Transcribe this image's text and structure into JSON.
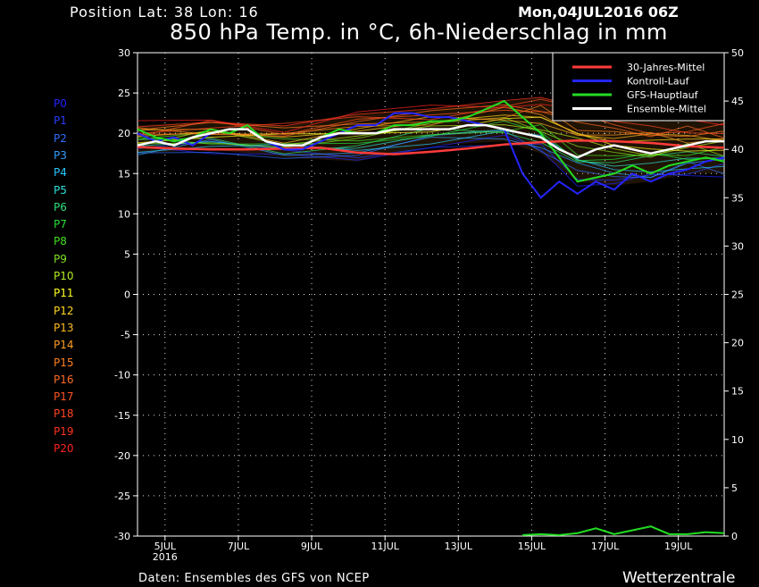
{
  "header": {
    "position": "Position  Lat: 38 Lon: 16",
    "date": "Mon,04JUL2016 06Z",
    "title": "850 hPa Temp. in °C, 6h-Niederschlag in mm"
  },
  "footer": {
    "source": "Daten: Ensembles des GFS von NCEP",
    "brand": "Wetterzentrale"
  },
  "members": [
    {
      "label": "P0",
      "color": "#2222ff"
    },
    {
      "label": "P1",
      "color": "#2a3cff"
    },
    {
      "label": "P2",
      "color": "#2f6cff"
    },
    {
      "label": "P3",
      "color": "#2f9dff"
    },
    {
      "label": "P4",
      "color": "#26c8ff"
    },
    {
      "label": "P5",
      "color": "#2ee0d8"
    },
    {
      "label": "P6",
      "color": "#2ee07a"
    },
    {
      "label": "P7",
      "color": "#22e03a"
    },
    {
      "label": "P8",
      "color": "#44e022"
    },
    {
      "label": "P9",
      "color": "#7ee022"
    },
    {
      "label": "P10",
      "color": "#b4ee22"
    },
    {
      "label": "P11",
      "color": "#ffff22"
    },
    {
      "label": "P12",
      "color": "#ffd822"
    },
    {
      "label": "P13",
      "color": "#ffba22"
    },
    {
      "label": "P14",
      "color": "#ff9c22"
    },
    {
      "label": "P15",
      "color": "#ff8022"
    },
    {
      "label": "P16",
      "color": "#ff6a22"
    },
    {
      "label": "P17",
      "color": "#ff5522"
    },
    {
      "label": "P18",
      "color": "#ff4422"
    },
    {
      "label": "P19",
      "color": "#ff3322"
    },
    {
      "label": "P20",
      "color": "#ff2222"
    }
  ],
  "chart_data": {
    "type": "line",
    "grid": true,
    "legend_position": "top-right",
    "x_unit": "days since 04JUL2016 06Z",
    "xlim": [
      0,
      16
    ],
    "x_ticks": [
      {
        "x": 0.75,
        "label": "5JUL"
      },
      {
        "x": 2.75,
        "label": "7JUL"
      },
      {
        "x": 4.75,
        "label": "9JUL"
      },
      {
        "x": 6.75,
        "label": "11JUL"
      },
      {
        "x": 8.75,
        "label": "13JUL"
      },
      {
        "x": 10.75,
        "label": "15JUL"
      },
      {
        "x": 12.75,
        "label": "17JUL"
      },
      {
        "x": 14.75,
        "label": "19JUL"
      }
    ],
    "x_year_label": "2016",
    "left_axis": {
      "label": "850 hPa Temp. in °C",
      "ylim": [
        -30,
        30
      ],
      "ticks": [
        30,
        25,
        20,
        15,
        10,
        5,
        0,
        -5,
        -10,
        -15,
        -20,
        -25,
        -30
      ]
    },
    "right_axis": {
      "label": "6h-Niederschlag in mm",
      "ylim": [
        0,
        50
      ],
      "ticks": [
        50,
        45,
        40,
        35,
        30,
        25,
        20,
        15,
        10,
        5,
        0
      ]
    },
    "series": [
      {
        "name": "30-Jahres-Mittel",
        "color": "#ff3b3b",
        "width": 2.5,
        "x": [
          0,
          1,
          2,
          3,
          4,
          5,
          6,
          7,
          8,
          9,
          10,
          11,
          12,
          13,
          14,
          15,
          16
        ],
        "y": [
          18.3,
          18.1,
          18.0,
          18.0,
          18.1,
          18.2,
          17.6,
          17.4,
          17.7,
          18.1,
          18.6,
          18.9,
          19.1,
          19.0,
          18.8,
          18.4,
          18.2
        ]
      },
      {
        "name": "Kontroll-Lauf",
        "color": "#2424ff",
        "width": 2,
        "x": [
          0,
          0.5,
          1,
          1.5,
          2,
          2.5,
          3,
          3.5,
          4,
          4.5,
          5,
          5.5,
          6,
          6.5,
          7,
          7.5,
          8,
          8.5,
          9,
          9.5,
          10,
          10.5,
          11,
          11.5,
          12,
          12.5,
          13,
          13.5,
          14,
          14.5,
          15,
          15.5,
          16
        ],
        "y": [
          20,
          19,
          19.5,
          18.5,
          20,
          20.5,
          20.5,
          19,
          18,
          18,
          19,
          20,
          21,
          21,
          22.5,
          22.5,
          22,
          22,
          21.5,
          21,
          20.5,
          15,
          12,
          14,
          12.5,
          14,
          13,
          15,
          14,
          15,
          15.5,
          16.5,
          17
        ]
      },
      {
        "name": "GFS-Hauptlauf",
        "color": "#22dd22",
        "width": 2,
        "x": [
          0,
          0.5,
          1,
          1.5,
          2,
          2.5,
          3,
          3.5,
          4,
          4.5,
          5,
          5.5,
          6,
          6.5,
          7,
          7.5,
          8,
          8.5,
          9,
          9.5,
          10,
          10.5,
          11,
          11.5,
          12,
          12.5,
          13,
          13.5,
          14,
          14.5,
          15,
          15.5,
          16
        ],
        "y": [
          20.5,
          19.5,
          19,
          19.5,
          20.5,
          20,
          21,
          19,
          18.5,
          18.5,
          19.5,
          20.5,
          20,
          20,
          21,
          21,
          21.5,
          21.5,
          22,
          23,
          24,
          22,
          20,
          17,
          14,
          14.5,
          15,
          16,
          15,
          16,
          16.5,
          17,
          16.5
        ]
      },
      {
        "name": "Ensemble-Mittel",
        "color": "#ffffff",
        "width": 2.5,
        "x": [
          0,
          0.5,
          1,
          1.5,
          2,
          2.5,
          3,
          3.5,
          4,
          4.5,
          5,
          5.5,
          6,
          6.5,
          7,
          7.5,
          8,
          8.5,
          9,
          9.5,
          10,
          10.5,
          11,
          11.5,
          12,
          12.5,
          13,
          13.5,
          14,
          14.5,
          15,
          15.5,
          16
        ],
        "y": [
          18.5,
          19,
          18.5,
          19.5,
          20,
          20.5,
          20.5,
          19,
          18.5,
          18.5,
          19.5,
          20,
          20,
          20,
          20.5,
          20.5,
          20.5,
          20.5,
          21,
          21,
          20.5,
          20,
          19.5,
          18,
          17,
          18,
          18.5,
          18,
          17.5,
          18,
          18.5,
          19,
          19
        ]
      }
    ],
    "ensemble_spread": {
      "x": [
        0,
        2,
        4,
        6,
        8,
        10,
        11,
        12,
        13,
        14,
        15,
        16
      ],
      "lower": [
        17.5,
        18,
        17,
        16.5,
        18.5,
        19,
        17.5,
        14,
        13.5,
        14,
        15,
        15
      ],
      "upper": [
        21,
        21.5,
        21,
        22.5,
        23,
        24,
        24.5,
        23.5,
        22,
        22,
        21.5,
        21.5
      ]
    },
    "precip": {
      "x": [
        10.5,
        11,
        11.5,
        12,
        12.5,
        13,
        13.5,
        14,
        14.5,
        15,
        15.5,
        16
      ],
      "y": [
        0.1,
        0.2,
        0.1,
        0.3,
        0.8,
        0.2,
        0.6,
        1.0,
        0.2,
        0.2,
        0.4,
        0.3
      ]
    }
  }
}
